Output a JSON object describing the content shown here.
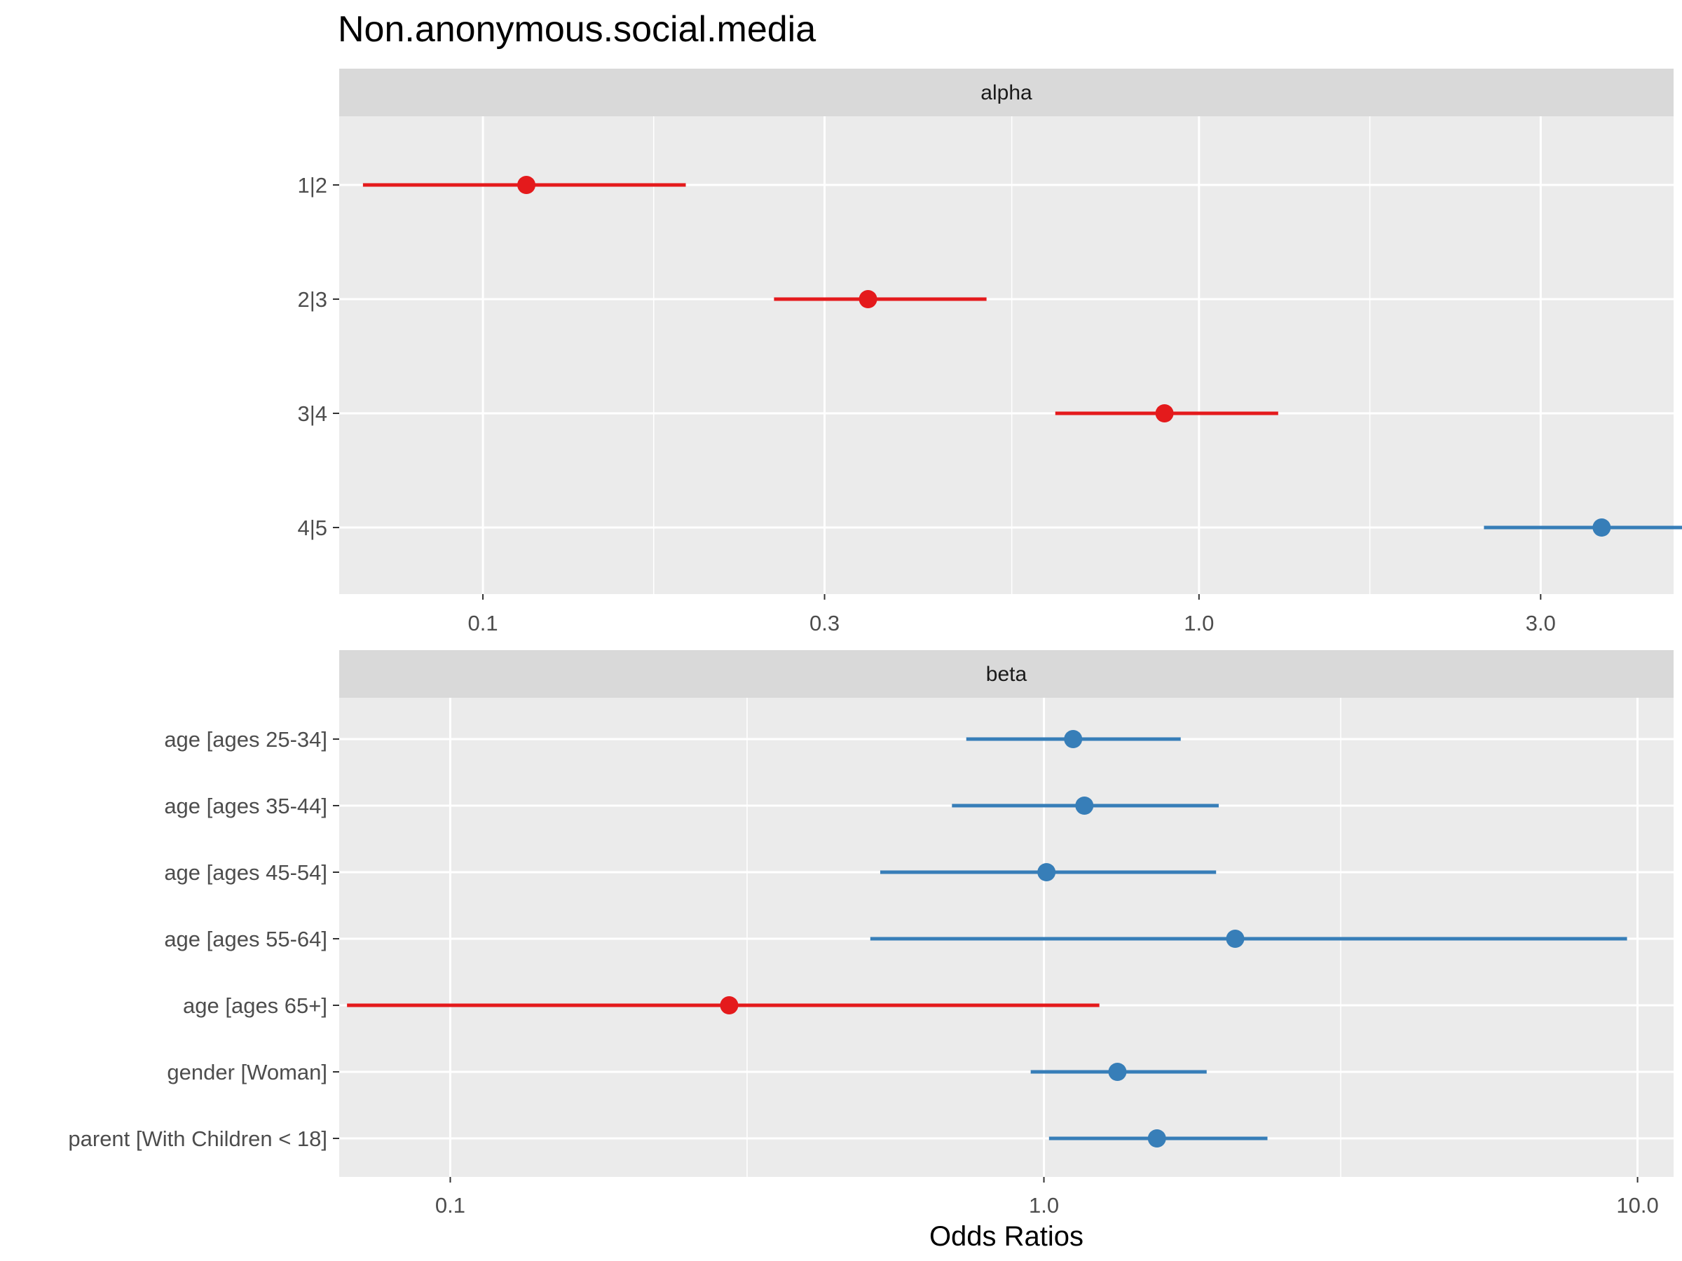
{
  "chart_data": {
    "type": "forest",
    "title": "Non.anonymous.social.media",
    "xlabel": "Odds Ratios",
    "scale": "log10",
    "colors": {
      "negative": "#E41A1C",
      "positive": "#377EB8"
    },
    "panels": [
      {
        "name": "alpha",
        "xlim": [
          0.063,
          4.6
        ],
        "xticks": [
          0.1,
          0.3,
          1.0,
          3.0
        ],
        "xtick_labels": [
          "0.1",
          "0.3",
          "1.0",
          "3.0"
        ],
        "minor_ticks": [
          0.1732,
          0.5477,
          1.7321
        ],
        "rows": [
          {
            "label": "1|2",
            "estimate": 0.115,
            "low": 0.068,
            "high": 0.192,
            "direction": "negative"
          },
          {
            "label": "2|3",
            "estimate": 0.345,
            "low": 0.255,
            "high": 0.505,
            "direction": "negative"
          },
          {
            "label": "3|4",
            "estimate": 0.895,
            "low": 0.63,
            "high": 1.29,
            "direction": "negative"
          },
          {
            "label": "4|5",
            "estimate": 3.65,
            "low": 2.5,
            "high": 4.95,
            "direction": "positive"
          }
        ]
      },
      {
        "name": "beta",
        "xlim": [
          0.065,
          11.5
        ],
        "xticks": [
          0.1,
          1.0,
          10.0
        ],
        "xtick_labels": [
          "0.1",
          "1.0",
          "10.0"
        ],
        "minor_ticks": [
          0.3162,
          3.1623
        ],
        "rows": [
          {
            "label": "age [ages 25-34]",
            "estimate": 1.12,
            "low": 0.74,
            "high": 1.7,
            "direction": "positive"
          },
          {
            "label": "age [ages 35-44]",
            "estimate": 1.17,
            "low": 0.7,
            "high": 1.97,
            "direction": "positive"
          },
          {
            "label": "age [ages 45-54]",
            "estimate": 1.01,
            "low": 0.53,
            "high": 1.95,
            "direction": "positive"
          },
          {
            "label": "age [ages 55-64]",
            "estimate": 2.1,
            "low": 0.51,
            "high": 9.6,
            "direction": "positive"
          },
          {
            "label": "age [ages 65+]",
            "estimate": 0.295,
            "low": 0.067,
            "high": 1.24,
            "direction": "negative"
          },
          {
            "label": "gender [Woman]",
            "estimate": 1.33,
            "low": 0.95,
            "high": 1.88,
            "direction": "positive"
          },
          {
            "label": "parent [With Children < 18]",
            "estimate": 1.55,
            "low": 1.02,
            "high": 2.38,
            "direction": "positive"
          }
        ]
      }
    ]
  }
}
